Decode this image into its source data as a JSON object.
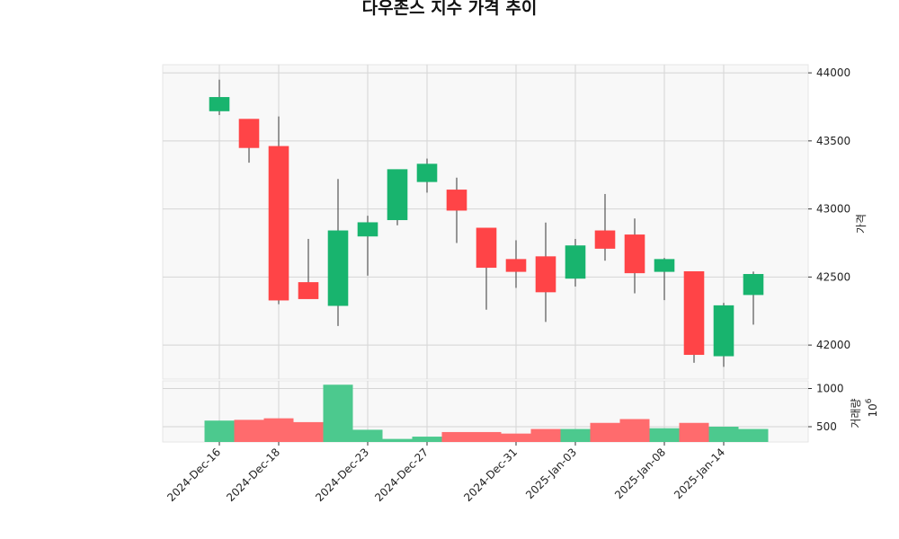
{
  "chart_data": {
    "type": "candlestick",
    "title": "다우존스 지수 가격 추이",
    "price_panel": {
      "ylabel": "가격",
      "ylim": [
        41750,
        44060
      ],
      "yticks": [
        42000,
        42500,
        43000,
        43500,
        44000
      ],
      "ytick_labels": [
        "42000",
        "42500",
        "43000",
        "43500",
        "44000"
      ],
      "grid": true
    },
    "volume_panel": {
      "ylabel": "거래량",
      "scale_label": "10",
      "scale_exponent": "6",
      "ylim": [
        300,
        1100
      ],
      "yticks": [
        500,
        1000
      ],
      "ytick_labels": [
        "500",
        "1000"
      ],
      "grid": true
    },
    "x_tick_labels": [
      {
        "index": 0,
        "label": "2024-Dec-16"
      },
      {
        "index": 2,
        "label": "2024-Dec-18"
      },
      {
        "index": 5,
        "label": "2024-Dec-23"
      },
      {
        "index": 7,
        "label": "2024-Dec-27"
      },
      {
        "index": 10,
        "label": "2024-Dec-31"
      },
      {
        "index": 12,
        "label": "2025-Jan-03"
      },
      {
        "index": 15,
        "label": "2025-Jan-08"
      },
      {
        "index": 17,
        "label": "2025-Jan-14"
      }
    ],
    "candles": [
      {
        "open": 43720,
        "high": 43950,
        "low": 43690,
        "close": 43820,
        "volume": 580
      },
      {
        "open": 43660,
        "high": 43660,
        "low": 43340,
        "close": 43450,
        "volume": 590
      },
      {
        "open": 43460,
        "high": 43680,
        "low": 42300,
        "close": 42330,
        "volume": 610
      },
      {
        "open": 42460,
        "high": 42780,
        "low": 42340,
        "close": 42340,
        "volume": 560
      },
      {
        "open": 42290,
        "high": 43220,
        "low": 42140,
        "close": 42840,
        "volume": 1050
      },
      {
        "open": 42800,
        "high": 42950,
        "low": 42510,
        "close": 42900,
        "volume": 460
      },
      {
        "open": 42920,
        "high": 43290,
        "low": 42880,
        "close": 43290,
        "volume": 340
      },
      {
        "open": 43200,
        "high": 43370,
        "low": 43120,
        "close": 43330,
        "volume": 370
      },
      {
        "open": 43140,
        "high": 43230,
        "low": 42750,
        "close": 42990,
        "volume": 430
      },
      {
        "open": 42860,
        "high": 42860,
        "low": 42260,
        "close": 42570,
        "volume": 430
      },
      {
        "open": 42630,
        "high": 42770,
        "low": 42420,
        "close": 42540,
        "volume": 410
      },
      {
        "open": 42650,
        "high": 42900,
        "low": 42170,
        "close": 42390,
        "volume": 470
      },
      {
        "open": 42490,
        "high": 42780,
        "low": 42430,
        "close": 42730,
        "volume": 470
      },
      {
        "open": 42840,
        "high": 43110,
        "low": 42620,
        "close": 42710,
        "volume": 550
      },
      {
        "open": 42810,
        "high": 42930,
        "low": 42380,
        "close": 42530,
        "volume": 600
      },
      {
        "open": 42540,
        "high": 42640,
        "low": 42330,
        "close": 42630,
        "volume": 480
      },
      {
        "open": 42540,
        "high": 42540,
        "low": 41870,
        "close": 41930,
        "volume": 550
      },
      {
        "open": 41920,
        "high": 42310,
        "low": 41840,
        "close": 42290,
        "volume": 500
      },
      {
        "open": 42370,
        "high": 42540,
        "low": 42150,
        "close": 42520,
        "volume": 470
      }
    ]
  },
  "colors": {
    "up": "#18b46e",
    "down": "#ff4447",
    "up_volume": "#4cc98e",
    "down_volume": "#ff6b6d",
    "wick": "#555555",
    "grid": "#d5d5d5",
    "panel_bg": "#f8f8f8"
  }
}
